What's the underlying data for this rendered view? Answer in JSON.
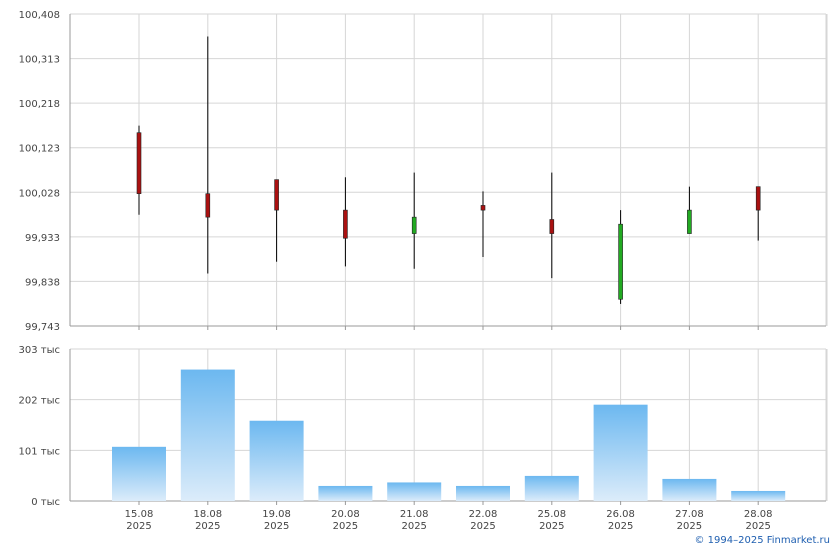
{
  "chart_data": [
    {
      "type": "candlestick",
      "categories": [
        [
          "15.08",
          "2025"
        ],
        [
          "18.08",
          "2025"
        ],
        [
          "19.08",
          "2025"
        ],
        [
          "20.08",
          "2025"
        ],
        [
          "21.08",
          "2025"
        ],
        [
          "22.08",
          "2025"
        ],
        [
          "25.08",
          "2025"
        ],
        [
          "26.08",
          "2025"
        ],
        [
          "27.08",
          "2025"
        ],
        [
          "28.08",
          "2025"
        ]
      ],
      "ohlc": [
        {
          "open": 100.155,
          "high": 100.17,
          "low": 99.98,
          "close": 100.025
        },
        {
          "open": 100.025,
          "high": 100.36,
          "low": 99.855,
          "close": 99.975
        },
        {
          "open": 100.055,
          "high": 100.055,
          "low": 99.88,
          "close": 99.99
        },
        {
          "open": 99.99,
          "high": 100.06,
          "low": 99.87,
          "close": 99.93
        },
        {
          "open": 99.94,
          "high": 100.07,
          "low": 99.865,
          "close": 99.975
        },
        {
          "open": 100.0,
          "high": 100.03,
          "low": 99.89,
          "close": 99.99
        },
        {
          "open": 99.97,
          "high": 100.07,
          "low": 99.845,
          "close": 99.94
        },
        {
          "open": 99.8,
          "high": 99.99,
          "low": 99.79,
          "close": 99.96
        },
        {
          "open": 99.94,
          "high": 100.04,
          "low": 99.94,
          "close": 99.99
        },
        {
          "open": 100.04,
          "high": 100.04,
          "low": 99.925,
          "close": 99.99
        }
      ],
      "ylim": [
        99.743,
        100.408
      ],
      "yticks": [
        "100,408",
        "100,313",
        "100,218",
        "100,123",
        "100,028",
        "99,933",
        "99,838",
        "99,743"
      ],
      "colors": {
        "down": "#aa1111",
        "up": "#22aa22",
        "wick": "#000000"
      },
      "grid": true
    },
    {
      "type": "bar",
      "values": [
        108,
        262,
        160,
        30,
        37,
        30,
        50,
        192,
        44,
        20
      ],
      "ylim": [
        0,
        303
      ],
      "yticks": [
        "303 тыс",
        "202 тыс",
        "101 тыс",
        "0 тыс"
      ],
      "colors": {
        "bar_top": "#6cb8f0",
        "bar_bottom": "#dcecfa"
      },
      "grid": true
    }
  ],
  "credit": "© 1994–2025 Finmarket.ru"
}
